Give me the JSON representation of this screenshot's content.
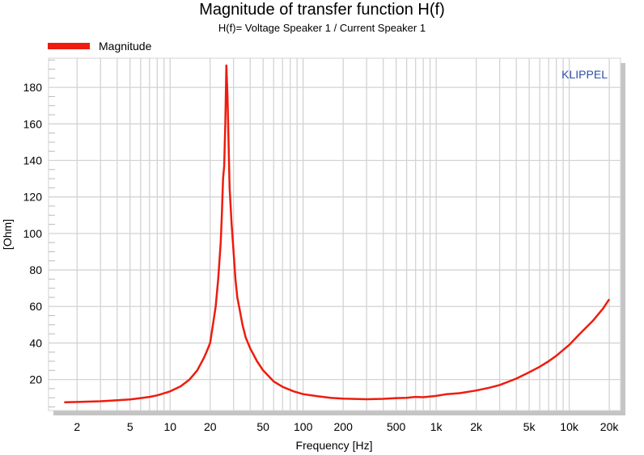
{
  "chart_data": {
    "type": "line",
    "title": "Magnitude of transfer function H(f)",
    "subtitle": "H(f)= Voltage Speaker 1 / Current Speaker 1",
    "xlabel": "Frequency [Hz]",
    "ylabel": "[Ohm]",
    "xscale": "log",
    "xlim": [
      1.22,
      24300
    ],
    "ylim": [
      3,
      196
    ],
    "grid": true,
    "legend_position": "top-left",
    "watermark": "KLIPPEL",
    "xticks": [
      {
        "v": 2,
        "l": "2"
      },
      {
        "v": 5,
        "l": "5"
      },
      {
        "v": 10,
        "l": "10"
      },
      {
        "v": 20,
        "l": "20"
      },
      {
        "v": 50,
        "l": "50"
      },
      {
        "v": 100,
        "l": "100"
      },
      {
        "v": 200,
        "l": "200"
      },
      {
        "v": 500,
        "l": "500"
      },
      {
        "v": 1000,
        "l": "1k"
      },
      {
        "v": 2000,
        "l": "2k"
      },
      {
        "v": 5000,
        "l": "5k"
      },
      {
        "v": 10000,
        "l": "10k"
      },
      {
        "v": 20000,
        "l": "20k"
      }
    ],
    "yticks": [
      20,
      40,
      60,
      80,
      100,
      120,
      140,
      160,
      180
    ],
    "colors": {
      "series": "#ee1c0e",
      "grid": "#d3d3d3",
      "watermark": "#2e4fa8"
    },
    "series": [
      {
        "name": "Magnitude",
        "x": [
          1.6,
          2,
          3,
          4,
          5,
          6,
          7,
          8,
          10,
          12,
          14,
          16,
          18,
          19,
          20,
          21,
          22,
          23,
          24,
          24.5,
          25,
          25.5,
          26,
          26.5,
          27,
          27.5,
          28,
          29,
          30,
          31,
          32,
          33,
          35,
          37,
          40,
          45,
          50,
          60,
          70,
          85,
          100,
          130,
          160,
          200,
          300,
          400,
          500,
          600,
          700,
          800,
          1000,
          1200,
          1500,
          2000,
          2500,
          3000,
          4000,
          5000,
          6000,
          7000,
          8000,
          10000,
          12000,
          15000,
          18000,
          20000
        ],
        "y": [
          7.5,
          7.7,
          8.1,
          8.6,
          9.1,
          9.8,
          10.5,
          11.3,
          13.5,
          16.3,
          20,
          25,
          32,
          36,
          40,
          50,
          60,
          75,
          95,
          110,
          130,
          137,
          160,
          192,
          175,
          150,
          125,
          105,
          90,
          75,
          65,
          60,
          50,
          43,
          37,
          30,
          25,
          19,
          16,
          13.5,
          12,
          10.8,
          10,
          9.5,
          9.2,
          9.4,
          9.8,
          10,
          10.5,
          10.3,
          11,
          12,
          12.5,
          14,
          15.5,
          17,
          20.5,
          24,
          27,
          30,
          33,
          39,
          45,
          52,
          59,
          64
        ]
      }
    ]
  }
}
